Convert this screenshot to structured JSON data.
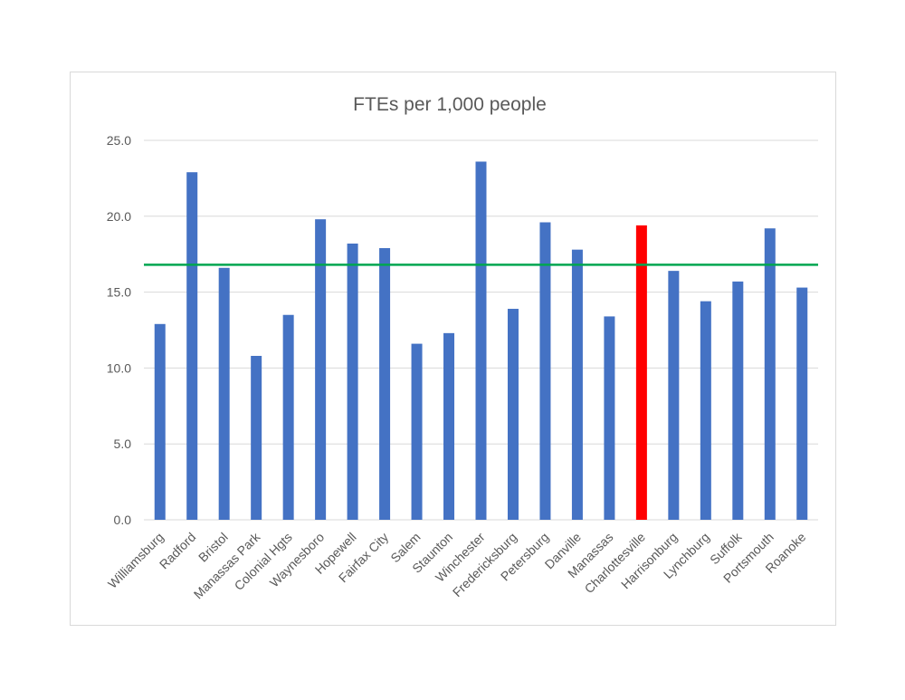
{
  "chart_data": {
    "type": "bar",
    "title": "FTEs per 1,000 people",
    "categories": [
      "Williamsburg",
      "Radford",
      "Bristol",
      "Manassas Park",
      "Colonial Hgts",
      "Waynesboro",
      "Hopewell",
      "Fairfax City",
      "Salem",
      "Staunton",
      "Winchester",
      "Fredericksburg",
      "Petersburg",
      "Danville",
      "Manassas",
      "Charlottesville",
      "Harrisonburg",
      "Lynchburg",
      "Suffolk",
      "Portsmouth",
      "Roanoke"
    ],
    "values": [
      12.9,
      22.9,
      16.6,
      10.8,
      13.5,
      19.8,
      18.2,
      17.9,
      11.6,
      12.3,
      23.6,
      13.9,
      19.6,
      17.8,
      13.4,
      19.4,
      16.4,
      14.4,
      15.7,
      19.2,
      15.3
    ],
    "highlight_category": "Charlottesville",
    "reference_line": 16.8,
    "yticks": [
      "0.0",
      "5.0",
      "10.0",
      "15.0",
      "20.0",
      "25.0"
    ],
    "ylim": [
      0,
      25
    ],
    "grid": true,
    "colors": {
      "bar": "#4472c4",
      "highlight": "#ff0000",
      "reference": "#00a650",
      "grid": "#d9d9d9",
      "text": "#595959"
    }
  }
}
